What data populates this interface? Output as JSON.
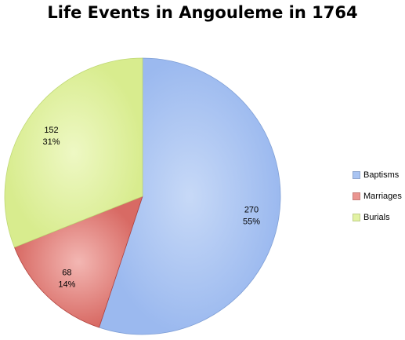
{
  "chart_data": {
    "type": "pie",
    "title": "Life Events in Angouleme in 1764",
    "slices": [
      {
        "name": "Baptisms",
        "value": 270,
        "percent": "55%",
        "color": "#a9c4f2",
        "edge": "#7f9fd6"
      },
      {
        "name": "Marriages",
        "value": 68,
        "percent": "14%",
        "color": "#ea9590",
        "edge": "#b0403b"
      },
      {
        "name": "Burials",
        "value": 152,
        "percent": "31%",
        "color": "#e2f2a3",
        "edge": "#bfd875"
      }
    ],
    "legend_position": "right"
  }
}
